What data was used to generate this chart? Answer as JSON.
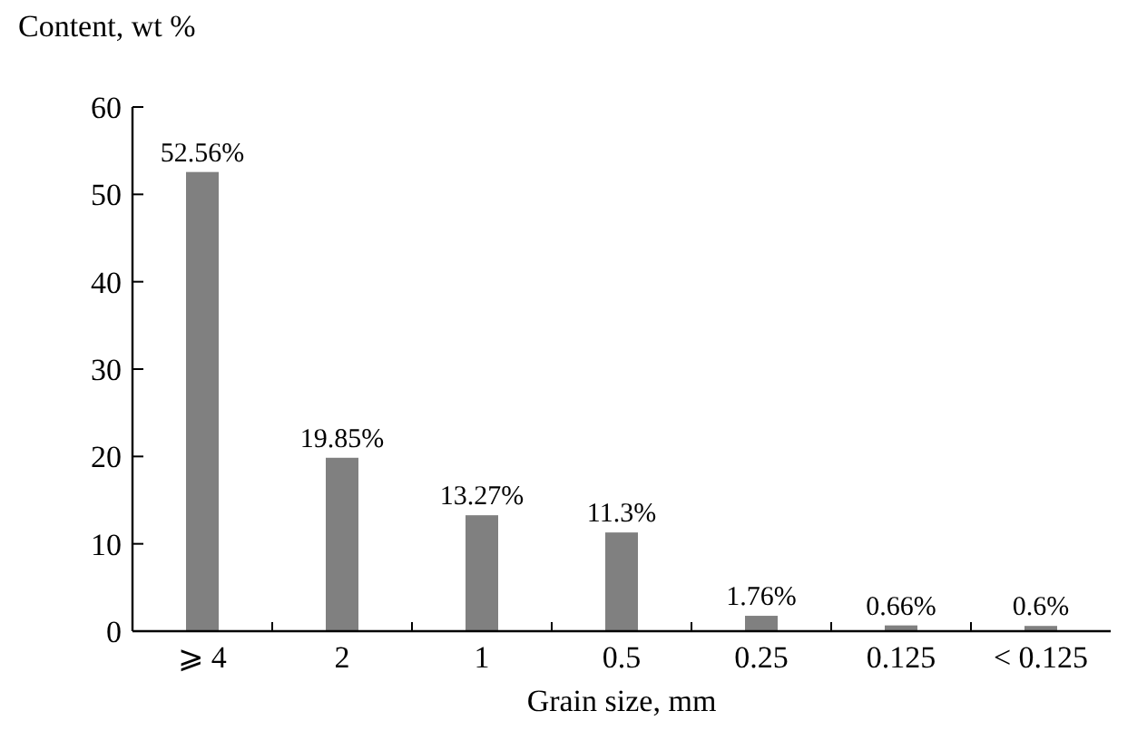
{
  "chart_data": {
    "type": "bar",
    "ylabel": "Content, wt %",
    "xlabel": "Grain size, mm",
    "categories": [
      "⩾ 4",
      "2",
      "1",
      "0.5",
      "0.25",
      "0.125",
      "< 0.125"
    ],
    "values": [
      52.56,
      19.85,
      13.27,
      11.3,
      1.76,
      0.66,
      0.6
    ],
    "value_labels": [
      "52.56%",
      "19.85%",
      "13.27%",
      "11.3%",
      "1.76%",
      "0.66%",
      "0.6%"
    ],
    "color": "#808080",
    "ylim": [
      0,
      60
    ],
    "yticks": [
      0,
      10,
      20,
      30,
      40,
      50,
      60
    ]
  }
}
